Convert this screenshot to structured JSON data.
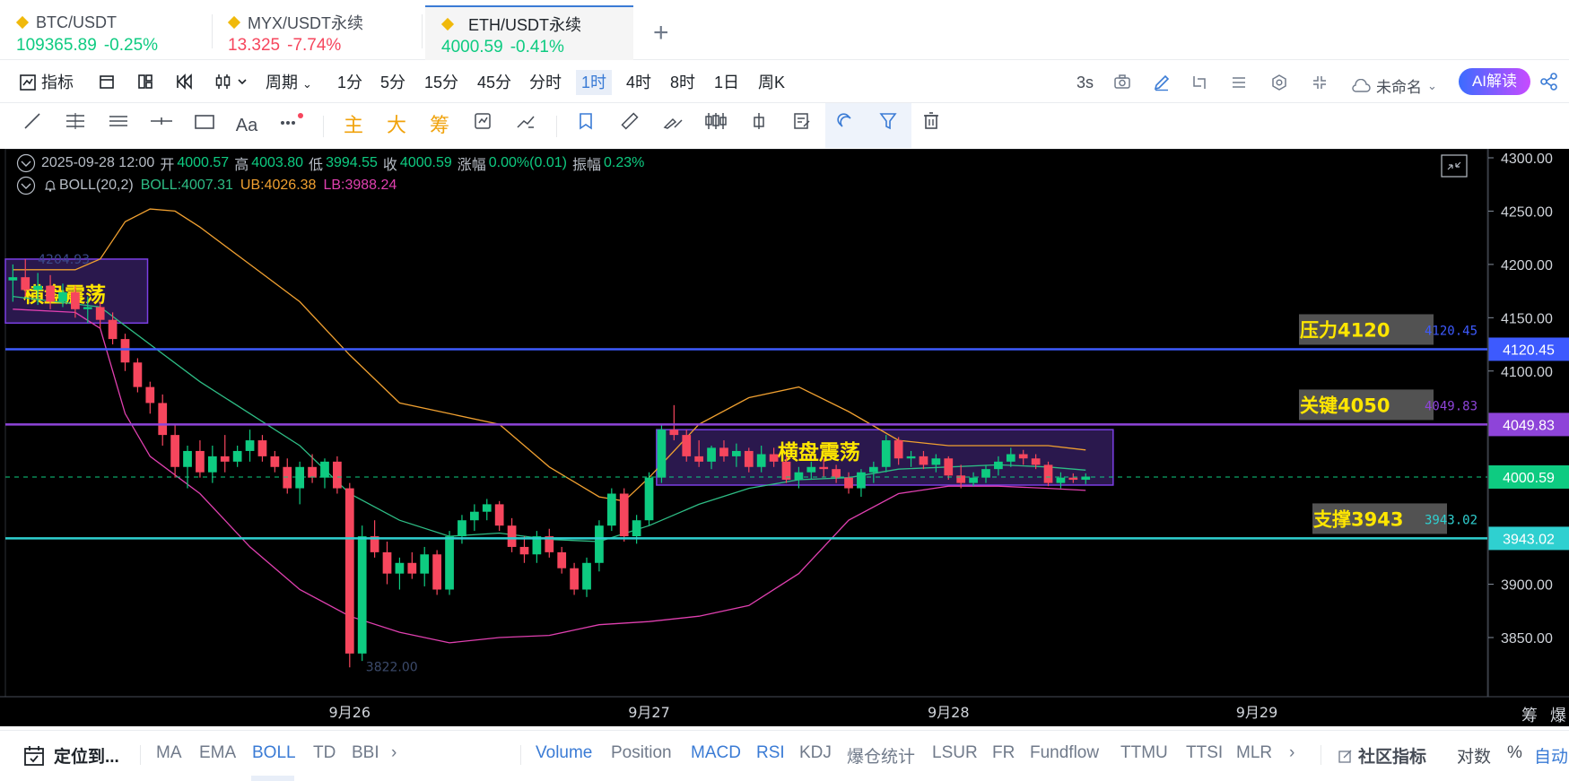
{
  "tabs": [
    {
      "symbol": "BTC/USDT",
      "price": "109365.89",
      "change": "-0.25%",
      "price_color": "#0ecb81",
      "change_color": "#0ecb81"
    },
    {
      "symbol": "MYX/USDT永续",
      "price": "13.325",
      "change": "-7.74%",
      "price_color": "#f6465d",
      "change_color": "#f6465d"
    },
    {
      "symbol": "ETH/USDT永续",
      "price": "4000.59",
      "change": "-0.41%",
      "price_color": "#0ecb81",
      "change_color": "#0ecb81"
    }
  ],
  "toolbar": {
    "indicators": "指标",
    "period": "周期",
    "intervals": [
      "1分",
      "5分",
      "15分",
      "45分",
      "分时",
      "1时",
      "4时",
      "8时",
      "1日",
      "周K"
    ],
    "selected_interval": "1时",
    "refresh": "3s",
    "layout_name": "未命名",
    "ai_button": "AI解读"
  },
  "drawing_tools": {
    "font_label": "Aa",
    "main": "主",
    "big": "大",
    "chips": "筹"
  },
  "chart_header": {
    "datetime": "2025-09-28 12:00",
    "open_label": "开",
    "open": "4000.57",
    "high_label": "高",
    "high": "4003.80",
    "low_label": "低",
    "low": "3994.55",
    "close_label": "收",
    "close": "4000.59",
    "change_label": "涨幅",
    "change": "0.00%(0.01)",
    "amp_label": "振幅",
    "amp": "0.23%",
    "indicator_name": "BOLL(20,2)",
    "boll": "BOLL:4007.31",
    "ub": "UB:4026.38",
    "lb": "LB:3988.24"
  },
  "colors": {
    "up": "#0ecb81",
    "down": "#f6465d",
    "mid": "#2ebd85",
    "upper": "#f0a030",
    "lower": "#e040b0",
    "resistance": "#3d5afe",
    "key": "#8e44d9",
    "support": "#2fd0d0",
    "last": "#0ecb81",
    "label_yellow": "#ffe600"
  },
  "chart_data": {
    "type": "candlestick",
    "symbol": "ETH/USDT永续",
    "interval": "1时",
    "ylim": [
      3820,
      4310
    ],
    "y_ticks": [
      "4300.00",
      "4250.00",
      "4200.00",
      "4150.00",
      "4100.00",
      "3900.00",
      "3850.00"
    ],
    "x_ticks": [
      {
        "label": "9月26",
        "t": 60
      },
      {
        "label": "9月27",
        "t": 84
      },
      {
        "label": "9月28",
        "t": 108
      },
      {
        "label": "9月29",
        "t": 132
      }
    ],
    "t_range": [
      32,
      146
    ],
    "candles": [
      [
        33,
        4185,
        4200,
        4165,
        4188
      ],
      [
        34,
        4188,
        4205,
        4170,
        4176
      ],
      [
        35,
        4176,
        4192,
        4162,
        4180
      ],
      [
        36,
        4180,
        4190,
        4158,
        4165
      ],
      [
        37,
        4165,
        4182,
        4160,
        4174
      ],
      [
        38,
        4174,
        4180,
        4150,
        4158
      ],
      [
        39,
        4158,
        4170,
        4145,
        4160
      ],
      [
        40,
        4160,
        4165,
        4140,
        4148
      ],
      [
        41,
        4148,
        4155,
        4125,
        4130
      ],
      [
        42,
        4130,
        4135,
        4100,
        4108
      ],
      [
        43,
        4108,
        4112,
        4080,
        4085
      ],
      [
        44,
        4085,
        4090,
        4060,
        4070
      ],
      [
        45,
        4070,
        4078,
        4030,
        4040
      ],
      [
        46,
        4040,
        4050,
        4000,
        4010
      ],
      [
        47,
        4010,
        4030,
        3990,
        4025
      ],
      [
        48,
        4025,
        4035,
        4000,
        4005
      ],
      [
        49,
        4005,
        4030,
        3995,
        4020
      ],
      [
        50,
        4020,
        4040,
        4005,
        4015
      ],
      [
        51,
        4015,
        4030,
        4010,
        4025
      ],
      [
        52,
        4025,
        4045,
        4015,
        4035
      ],
      [
        53,
        4035,
        4040,
        4015,
        4020
      ],
      [
        54,
        4020,
        4025,
        4005,
        4010
      ],
      [
        55,
        4010,
        4018,
        3985,
        3990
      ],
      [
        56,
        3990,
        4015,
        3975,
        4010
      ],
      [
        57,
        4010,
        4022,
        3995,
        4000
      ],
      [
        58,
        4000,
        4018,
        3990,
        4015
      ],
      [
        59,
        4015,
        4020,
        3985,
        3990
      ],
      [
        60,
        3990,
        3995,
        3822,
        3835
      ],
      [
        61,
        3835,
        3955,
        3828,
        3945
      ],
      [
        62,
        3945,
        3960,
        3925,
        3930
      ],
      [
        63,
        3930,
        3940,
        3900,
        3910
      ],
      [
        64,
        3910,
        3925,
        3895,
        3920
      ],
      [
        65,
        3920,
        3930,
        3905,
        3910
      ],
      [
        66,
        3910,
        3935,
        3898,
        3928
      ],
      [
        67,
        3928,
        3932,
        3890,
        3895
      ],
      [
        68,
        3895,
        3950,
        3890,
        3945
      ],
      [
        69,
        3945,
        3965,
        3938,
        3960
      ],
      [
        70,
        3960,
        3975,
        3950,
        3968
      ],
      [
        71,
        3968,
        3980,
        3960,
        3975
      ],
      [
        72,
        3975,
        3978,
        3950,
        3955
      ],
      [
        73,
        3955,
        3962,
        3930,
        3935
      ],
      [
        74,
        3935,
        3945,
        3920,
        3928
      ],
      [
        75,
        3928,
        3950,
        3920,
        3945
      ],
      [
        76,
        3945,
        3952,
        3925,
        3930
      ],
      [
        77,
        3930,
        3935,
        3910,
        3915
      ],
      [
        78,
        3915,
        3920,
        3890,
        3895
      ],
      [
        79,
        3895,
        3925,
        3888,
        3920
      ],
      [
        80,
        3920,
        3960,
        3912,
        3955
      ],
      [
        81,
        3955,
        3990,
        3950,
        3985
      ],
      [
        82,
        3985,
        3990,
        3940,
        3945
      ],
      [
        83,
        3945,
        3965,
        3938,
        3960
      ],
      [
        84,
        3960,
        4005,
        3955,
        4000
      ],
      [
        85,
        4000,
        4050,
        3995,
        4045
      ],
      [
        86,
        4045,
        4068,
        4035,
        4040
      ],
      [
        87,
        4040,
        4045,
        4015,
        4020
      ],
      [
        88,
        4020,
        4035,
        4010,
        4015
      ],
      [
        89,
        4015,
        4030,
        4008,
        4028
      ],
      [
        90,
        4028,
        4035,
        4015,
        4020
      ],
      [
        91,
        4020,
        4032,
        4010,
        4025
      ],
      [
        92,
        4025,
        4028,
        4005,
        4010
      ],
      [
        93,
        4010,
        4030,
        4005,
        4022
      ],
      [
        94,
        4022,
        4028,
        4010,
        4015
      ],
      [
        95,
        4015,
        4020,
        3995,
        3998
      ],
      [
        96,
        3998,
        4010,
        3990,
        4005
      ],
      [
        97,
        4005,
        4015,
        3998,
        4010
      ],
      [
        98,
        4010,
        4018,
        4000,
        4008
      ],
      [
        99,
        4008,
        4012,
        3995,
        4000
      ],
      [
        100,
        4000,
        4005,
        3985,
        3990
      ],
      [
        101,
        3990,
        4008,
        3982,
        4005
      ],
      [
        102,
        4005,
        4015,
        3995,
        4010
      ],
      [
        103,
        4010,
        4040,
        4005,
        4035
      ],
      [
        104,
        4035,
        4038,
        4012,
        4018
      ],
      [
        105,
        4018,
        4025,
        4010,
        4020
      ],
      [
        106,
        4020,
        4025,
        4008,
        4012
      ],
      [
        107,
        4012,
        4022,
        4005,
        4018
      ],
      [
        108,
        4018,
        4020,
        3998,
        4002
      ],
      [
        109,
        4002,
        4012,
        3990,
        3995
      ],
      [
        110,
        3995,
        4005,
        3992,
        4000
      ],
      [
        111,
        4000,
        4012,
        3995,
        4008
      ],
      [
        112,
        4008,
        4020,
        4002,
        4015
      ],
      [
        113,
        4015,
        4028,
        4010,
        4022
      ],
      [
        114,
        4022,
        4026,
        4012,
        4018
      ],
      [
        115,
        4018,
        4022,
        4008,
        4012
      ],
      [
        116,
        4012,
        4015,
        3992,
        3995
      ],
      [
        117,
        3995,
        4005,
        3990,
        4000
      ],
      [
        118,
        4000,
        4004,
        3995,
        3998
      ],
      [
        119,
        3998,
        4004,
        3994,
        4001
      ]
    ],
    "boll": {
      "mid": [
        [
          33,
          4170
        ],
        [
          40,
          4160
        ],
        [
          44,
          4125
        ],
        [
          48,
          4090
        ],
        [
          52,
          4060
        ],
        [
          56,
          4030
        ],
        [
          60,
          3985
        ],
        [
          64,
          3960
        ],
        [
          68,
          3945
        ],
        [
          72,
          3948
        ],
        [
          76,
          3942
        ],
        [
          80,
          3940
        ],
        [
          84,
          3955
        ],
        [
          88,
          3975
        ],
        [
          92,
          3990
        ],
        [
          96,
          3998
        ],
        [
          100,
          4000
        ],
        [
          104,
          4008
        ],
        [
          108,
          4010
        ],
        [
          112,
          4012
        ],
        [
          116,
          4010
        ],
        [
          119,
          4007
        ]
      ],
      "upper": [
        [
          33,
          4195
        ],
        [
          38,
          4195
        ],
        [
          40,
          4205
        ],
        [
          42,
          4240
        ],
        [
          44,
          4252
        ],
        [
          46,
          4250
        ],
        [
          48,
          4235
        ],
        [
          52,
          4200
        ],
        [
          56,
          4165
        ],
        [
          60,
          4115
        ],
        [
          64,
          4070
        ],
        [
          68,
          4060
        ],
        [
          72,
          4050
        ],
        [
          76,
          4010
        ],
        [
          80,
          3982
        ],
        [
          82,
          3978
        ],
        [
          84,
          4000
        ],
        [
          88,
          4050
        ],
        [
          92,
          4075
        ],
        [
          96,
          4085
        ],
        [
          100,
          4062
        ],
        [
          104,
          4035
        ],
        [
          108,
          4030
        ],
        [
          112,
          4030
        ],
        [
          116,
          4030
        ],
        [
          119,
          4026
        ]
      ],
      "lower": [
        [
          33,
          4158
        ],
        [
          38,
          4155
        ],
        [
          40,
          4140
        ],
        [
          42,
          4060
        ],
        [
          44,
          4020
        ],
        [
          48,
          3985
        ],
        [
          52,
          3935
        ],
        [
          56,
          3895
        ],
        [
          60,
          3870
        ],
        [
          64,
          3855
        ],
        [
          68,
          3845
        ],
        [
          72,
          3850
        ],
        [
          76,
          3852
        ],
        [
          80,
          3862
        ],
        [
          84,
          3865
        ],
        [
          88,
          3870
        ],
        [
          92,
          3880
        ],
        [
          96,
          3910
        ],
        [
          100,
          3960
        ],
        [
          104,
          3985
        ],
        [
          108,
          3992
        ],
        [
          112,
          3992
        ],
        [
          116,
          3990
        ],
        [
          119,
          3988
        ]
      ]
    },
    "zones": [
      {
        "label": "横盘震荡",
        "t0": 32.4,
        "t1": 43.8,
        "hi": 4205,
        "lo": 4145
      },
      {
        "label": "横盘震荡",
        "t0": 84.6,
        "t1": 121.2,
        "hi": 4045,
        "lo": 3993
      }
    ],
    "levels": [
      {
        "name": "压力4120",
        "price": 4120.45,
        "price_text": "4120.45",
        "color": "#3d5afe",
        "tag_bg": "#3d5afe"
      },
      {
        "name": "关键4050",
        "price": 4049.83,
        "price_text": "4049.83",
        "color": "#8e44d9",
        "tag_bg": "#8e44d9"
      },
      {
        "name": "支撑3943",
        "price": 3943.02,
        "price_text": "3943.02",
        "color": "#2fd0d0",
        "tag_bg": "#2fd0d0"
      }
    ],
    "last_price": "4000.59",
    "low_marker": "3822.00",
    "high_marker": "4204.93",
    "grid": false
  },
  "side_labels": {
    "chips": "筹",
    "burst": "爆"
  },
  "bottom_bar": {
    "locate": "定位到...",
    "main_indicators": [
      "MA",
      "EMA",
      "BOLL",
      "TD",
      "BBI"
    ],
    "active_main": "BOLL",
    "sub_indicators": [
      "Volume",
      "Position",
      "MACD",
      "RSI",
      "KDJ",
      "爆仓统计",
      "LSUR",
      "FR",
      "Fundflow",
      "TTMU",
      "TTSI",
      "MLR"
    ],
    "active_sub": [
      "Volume",
      "MACD",
      "RSI"
    ],
    "community": "社区指标",
    "log": "对数",
    "percent": "%",
    "auto": "自动"
  }
}
